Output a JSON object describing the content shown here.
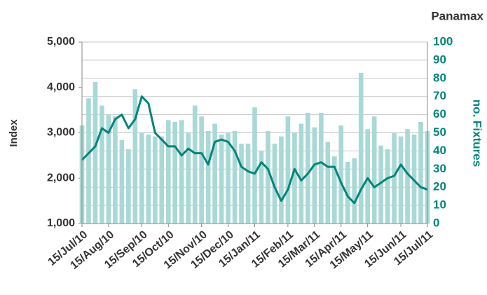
{
  "chart_data": {
    "type": "bar",
    "title": "Panamax",
    "y_label": "Index",
    "y2_label": "no. Fixtures",
    "categories": [
      "15/Jul/10",
      null,
      null,
      null,
      "15/Aug/10",
      null,
      null,
      null,
      null,
      "15/Sep/10",
      null,
      null,
      null,
      "15/Oct/10",
      null,
      null,
      null,
      null,
      "15/Nov/10",
      null,
      null,
      null,
      "15/Dec/10",
      null,
      null,
      null,
      "15/Jan/11",
      null,
      null,
      null,
      null,
      "15/Feb/11",
      null,
      null,
      null,
      "15/Mar/11",
      null,
      null,
      null,
      "15/Apr/11",
      null,
      null,
      null,
      "15/May/11",
      null,
      null,
      null,
      null,
      "15/Jun/11",
      null,
      null,
      null,
      "15/Jul/11"
    ],
    "series": [
      {
        "name": "no. Fixtures",
        "type": "bar",
        "axis": "y2",
        "color": "#a9d9d6",
        "values": [
          54,
          69,
          78,
          65,
          60,
          59,
          46,
          41,
          74,
          50,
          49,
          48,
          48,
          57,
          56,
          57,
          50,
          65,
          59,
          51,
          55,
          49,
          50,
          51,
          44,
          44,
          64,
          40,
          51,
          44,
          48,
          59,
          50,
          55,
          61,
          53,
          61,
          45,
          37,
          54,
          34,
          36,
          83,
          52,
          59,
          43,
          41,
          50,
          48,
          52,
          49,
          56,
          51
        ]
      },
      {
        "name": "Index",
        "type": "line",
        "axis": "y",
        "color": "#00857a",
        "values": [
          2400,
          2550,
          2700,
          3100,
          3000,
          3300,
          3400,
          3100,
          3300,
          3800,
          3650,
          3000,
          2850,
          2700,
          2700,
          2500,
          2650,
          2550,
          2550,
          2300,
          2800,
          2850,
          2800,
          2600,
          2250,
          2150,
          2100,
          2350,
          2200,
          1800,
          1500,
          1750,
          2200,
          1950,
          2100,
          2300,
          2350,
          2250,
          2250,
          1900,
          1600,
          1450,
          1750,
          2000,
          1800,
          1900,
          2000,
          2050,
          2300,
          2100,
          1950,
          1800,
          1750
        ]
      }
    ],
    "ylim": [
      1000,
      5000
    ],
    "yticks": [
      {
        "value": 1000,
        "label": "1,000"
      },
      {
        "value": 2000,
        "label": "2,000"
      },
      {
        "value": 3000,
        "label": "3,000"
      },
      {
        "value": 4000,
        "label": "4,000"
      },
      {
        "value": 5000,
        "label": "5,000"
      }
    ],
    "y2lim": [
      0,
      100
    ],
    "y2ticks": [
      0,
      10,
      20,
      30,
      40,
      50,
      60,
      70,
      80,
      90,
      100
    ],
    "grid": true
  }
}
